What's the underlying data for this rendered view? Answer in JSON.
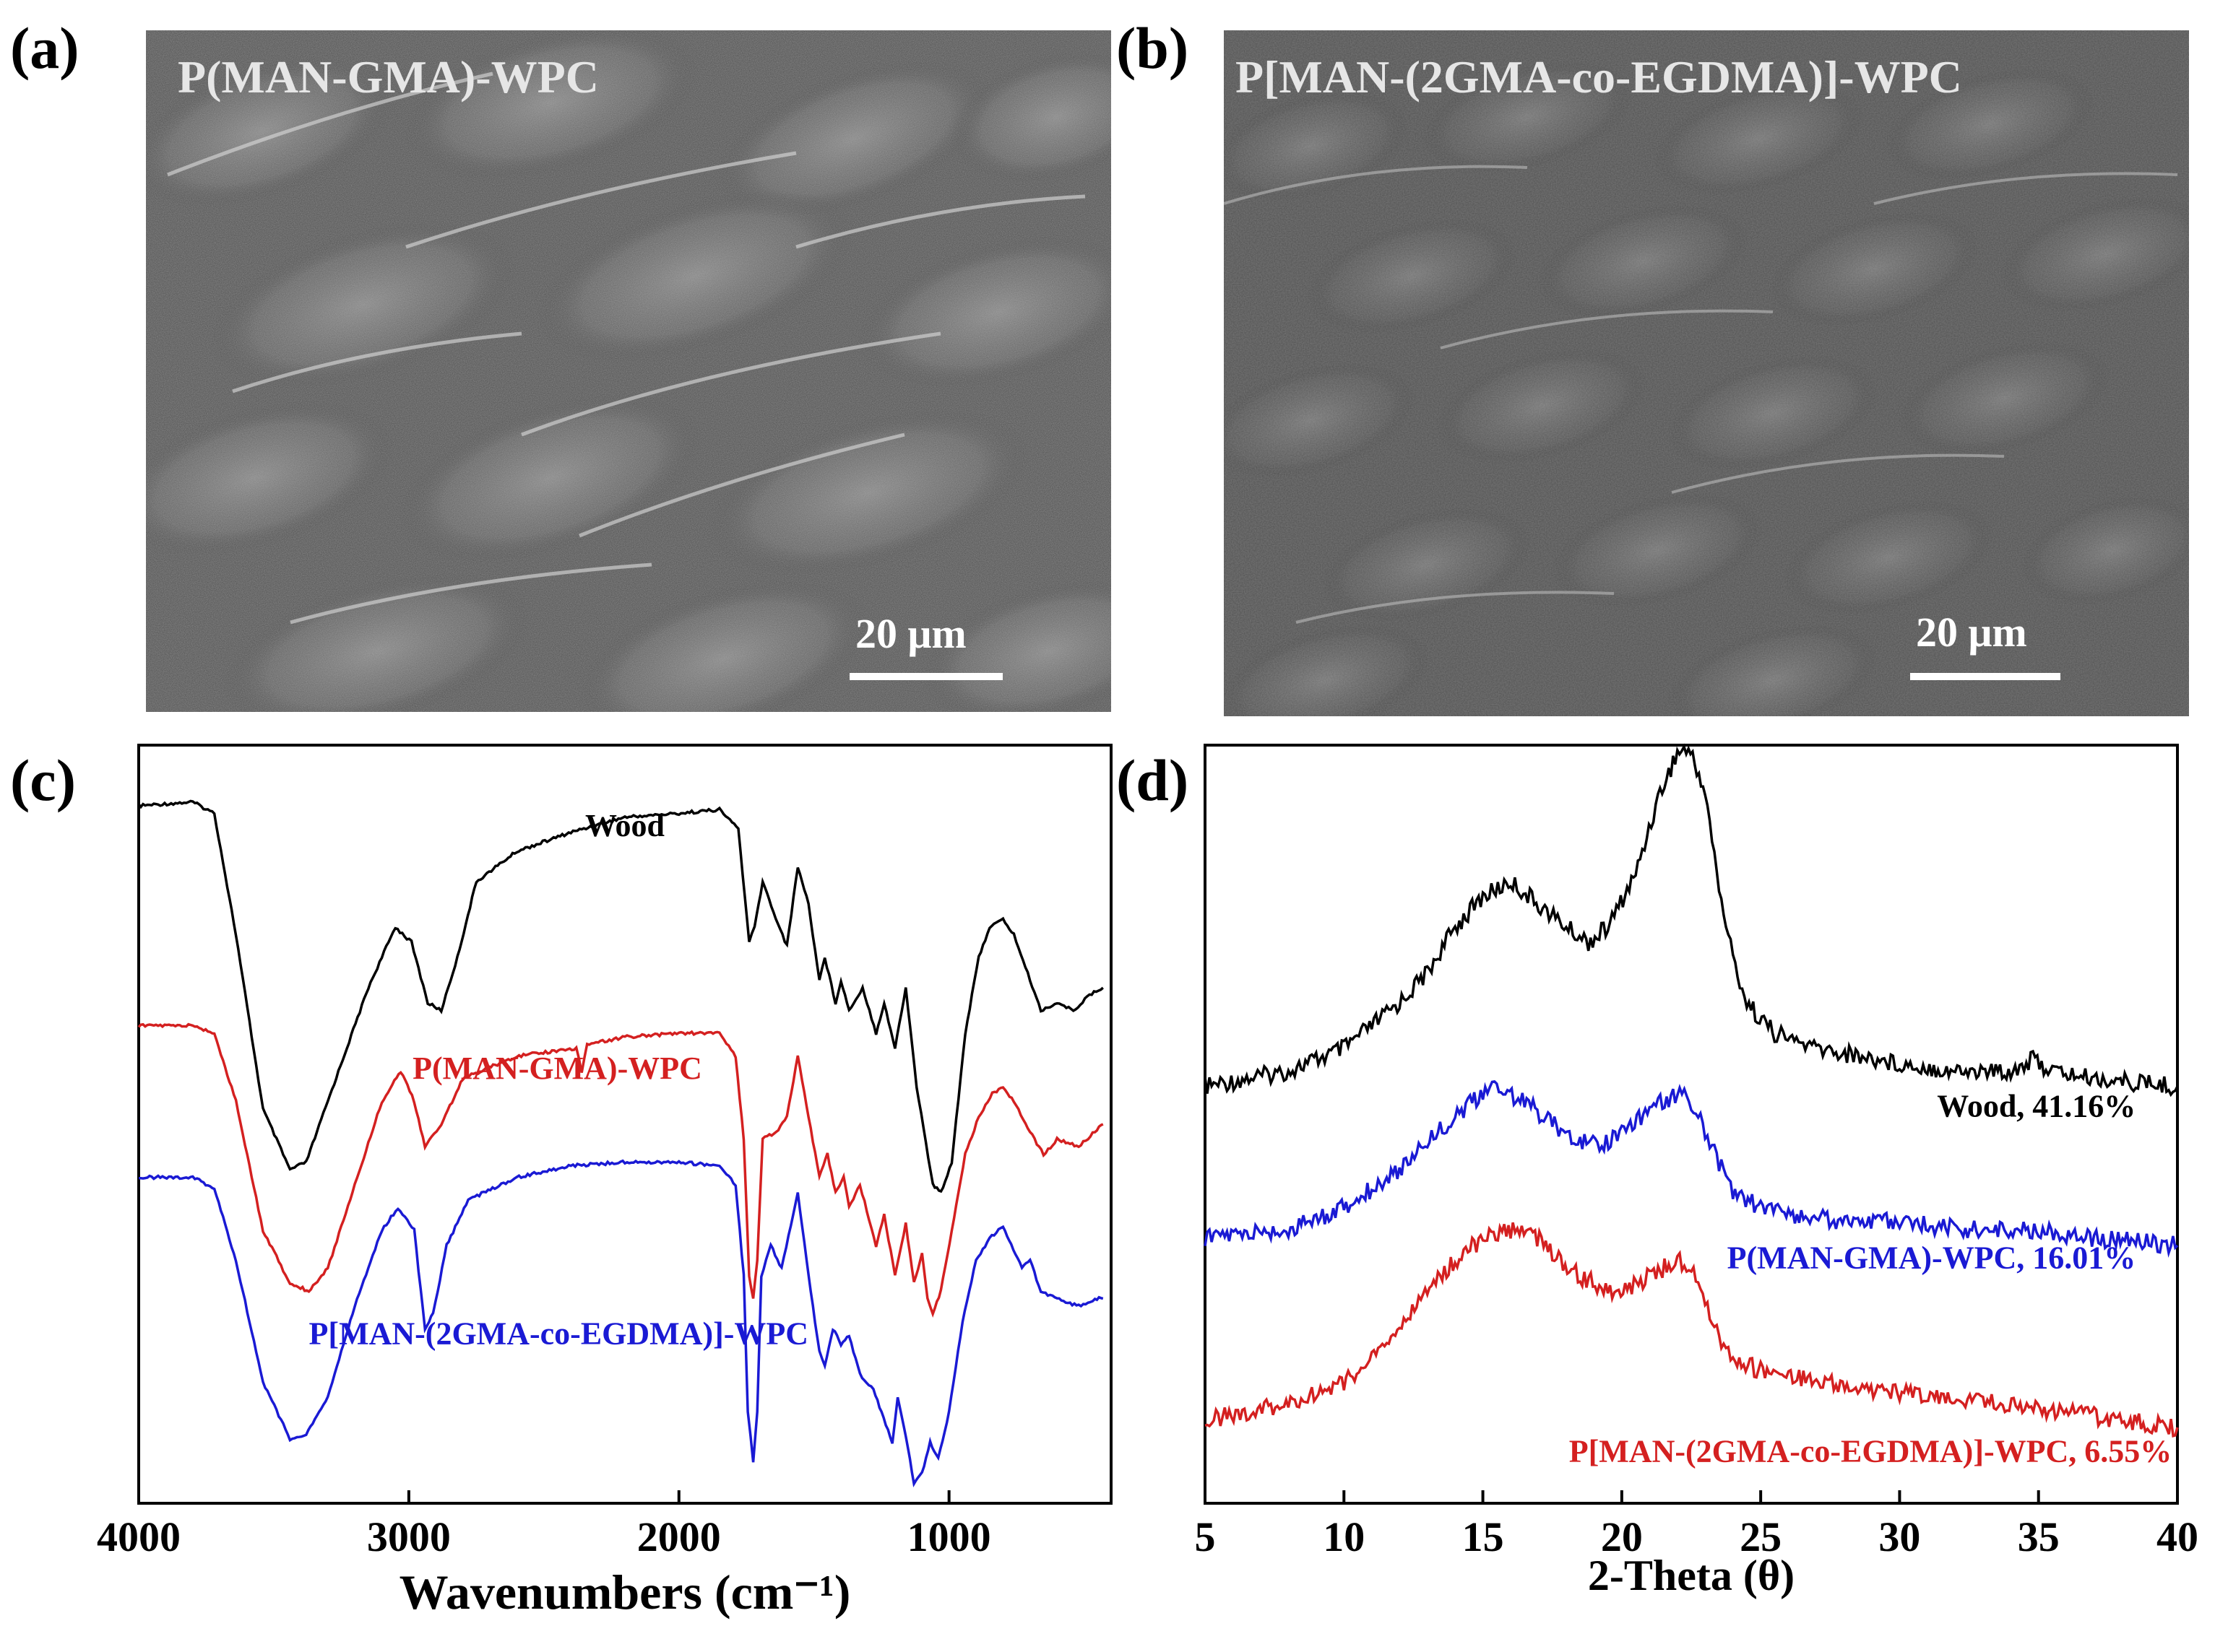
{
  "panels": {
    "a": {
      "label": "(a)",
      "title": "P(MAN-GMA)-WPC",
      "scale": "20 μm"
    },
    "b": {
      "label": "(b)",
      "title": "P[MAN-(2GMA-co-EGDMA)]-WPC",
      "scale": "20 μm"
    },
    "c": {
      "label": "(c)"
    },
    "d": {
      "label": "(d)"
    }
  },
  "colors": {
    "black": "#000000",
    "red": "#d42020",
    "blue": "#1a1ad4"
  },
  "chart_data": [
    {
      "type": "line",
      "id": "ftir",
      "xlabel": "Wavenumbers (cm⁻¹)",
      "ylabel": "",
      "xlim": [
        4000,
        400
      ],
      "ylim": [
        0,
        10
      ],
      "xticks": [
        4000,
        3000,
        2000,
        1000
      ],
      "xtick_labels": [
        "4000",
        "3000",
        "2000",
        "1000"
      ],
      "series": [
        {
          "name": "Wood",
          "color": "#000000",
          "label_pos": [
            2200,
            8.8
          ],
          "points": [
            [
              4000,
              9.2
            ],
            [
              3800,
              9.25
            ],
            [
              3720,
              9.1
            ],
            [
              3640,
              7.5
            ],
            [
              3540,
              5.2
            ],
            [
              3440,
              4.4
            ],
            [
              3380,
              4.5
            ],
            [
              3300,
              5.3
            ],
            [
              3150,
              6.8
            ],
            [
              3050,
              7.6
            ],
            [
              2990,
              7.4
            ],
            [
              2930,
              6.6
            ],
            [
              2880,
              6.5
            ],
            [
              2820,
              7.2
            ],
            [
              2750,
              8.2
            ],
            [
              2600,
              8.6
            ],
            [
              2400,
              8.85
            ],
            [
              2200,
              9.05
            ],
            [
              2000,
              9.1
            ],
            [
              1850,
              9.15
            ],
            [
              1780,
              8.9
            ],
            [
              1740,
              7.4
            ],
            [
              1720,
              7.6
            ],
            [
              1690,
              8.2
            ],
            [
              1650,
              7.8
            ],
            [
              1600,
              7.35
            ],
            [
              1560,
              8.4
            ],
            [
              1520,
              7.9
            ],
            [
              1480,
              6.9
            ],
            [
              1460,
              7.2
            ],
            [
              1420,
              6.6
            ],
            [
              1400,
              6.9
            ],
            [
              1370,
              6.5
            ],
            [
              1320,
              6.8
            ],
            [
              1270,
              6.2
            ],
            [
              1240,
              6.6
            ],
            [
              1200,
              6.0
            ],
            [
              1160,
              6.8
            ],
            [
              1120,
              5.5
            ],
            [
              1060,
              4.2
            ],
            [
              1030,
              4.1
            ],
            [
              990,
              4.5
            ],
            [
              940,
              6.2
            ],
            [
              890,
              7.2
            ],
            [
              850,
              7.6
            ],
            [
              800,
              7.7
            ],
            [
              760,
              7.5
            ],
            [
              700,
              6.9
            ],
            [
              660,
              6.5
            ],
            [
              600,
              6.6
            ],
            [
              540,
              6.5
            ],
            [
              480,
              6.7
            ],
            [
              430,
              6.8
            ]
          ]
        },
        {
          "name": "P(MAN-GMA)-WPC",
          "color": "#d42020",
          "label_pos": [
            2450,
            5.6
          ],
          "points": [
            [
              4000,
              6.3
            ],
            [
              3800,
              6.3
            ],
            [
              3720,
              6.2
            ],
            [
              3640,
              5.3
            ],
            [
              3540,
              3.6
            ],
            [
              3440,
              2.9
            ],
            [
              3370,
              2.8
            ],
            [
              3300,
              3.1
            ],
            [
              3200,
              4.2
            ],
            [
              3100,
              5.3
            ],
            [
              3030,
              5.7
            ],
            [
              2980,
              5.3
            ],
            [
              2940,
              4.7
            ],
            [
              2880,
              5.0
            ],
            [
              2800,
              5.6
            ],
            [
              2600,
              5.9
            ],
            [
              2380,
              6.0
            ],
            [
              2360,
              5.7
            ],
            [
              2340,
              6.05
            ],
            [
              2200,
              6.15
            ],
            [
              2000,
              6.2
            ],
            [
              1850,
              6.2
            ],
            [
              1790,
              5.9
            ],
            [
              1760,
              4.8
            ],
            [
              1740,
              3.0
            ],
            [
              1725,
              2.7
            ],
            [
              1710,
              3.2
            ],
            [
              1690,
              4.8
            ],
            [
              1640,
              4.9
            ],
            [
              1600,
              5.1
            ],
            [
              1560,
              5.9
            ],
            [
              1520,
              5.1
            ],
            [
              1480,
              4.3
            ],
            [
              1450,
              4.6
            ],
            [
              1420,
              4.1
            ],
            [
              1390,
              4.3
            ],
            [
              1370,
              3.9
            ],
            [
              1330,
              4.2
            ],
            [
              1270,
              3.4
            ],
            [
              1240,
              3.8
            ],
            [
              1200,
              3.0
            ],
            [
              1160,
              3.7
            ],
            [
              1130,
              2.9
            ],
            [
              1100,
              3.3
            ],
            [
              1080,
              2.7
            ],
            [
              1060,
              2.5
            ],
            [
              1030,
              2.8
            ],
            [
              990,
              3.6
            ],
            [
              940,
              4.6
            ],
            [
              890,
              5.1
            ],
            [
              840,
              5.4
            ],
            [
              800,
              5.5
            ],
            [
              760,
              5.3
            ],
            [
              700,
              4.9
            ],
            [
              650,
              4.6
            ],
            [
              600,
              4.8
            ],
            [
              520,
              4.7
            ],
            [
              460,
              4.9
            ],
            [
              430,
              5.0
            ]
          ]
        },
        {
          "name": "P[MAN-(2GMA-co-EGDMA)]-WPC",
          "color": "#1a1ad4",
          "label_pos": [
            3370,
            2.1
          ],
          "points": [
            [
              4000,
              4.3
            ],
            [
              3800,
              4.3
            ],
            [
              3720,
              4.15
            ],
            [
              3640,
              3.2
            ],
            [
              3540,
              1.6
            ],
            [
              3440,
              0.85
            ],
            [
              3380,
              0.9
            ],
            [
              3300,
              1.4
            ],
            [
              3200,
              2.6
            ],
            [
              3100,
              3.6
            ],
            [
              3040,
              3.9
            ],
            [
              2980,
              3.6
            ],
            [
              2940,
              2.3
            ],
            [
              2910,
              2.5
            ],
            [
              2860,
              3.4
            ],
            [
              2780,
              4.0
            ],
            [
              2600,
              4.3
            ],
            [
              2400,
              4.45
            ],
            [
              2200,
              4.5
            ],
            [
              2000,
              4.5
            ],
            [
              1850,
              4.45
            ],
            [
              1790,
              4.2
            ],
            [
              1760,
              3.0
            ],
            [
              1745,
              1.2
            ],
            [
              1725,
              0.55
            ],
            [
              1710,
              1.2
            ],
            [
              1695,
              3.0
            ],
            [
              1660,
              3.4
            ],
            [
              1620,
              3.1
            ],
            [
              1560,
              4.1
            ],
            [
              1520,
              3.0
            ],
            [
              1480,
              2.0
            ],
            [
              1460,
              1.8
            ],
            [
              1430,
              2.3
            ],
            [
              1400,
              2.1
            ],
            [
              1370,
              2.2
            ],
            [
              1330,
              1.7
            ],
            [
              1280,
              1.5
            ],
            [
              1250,
              1.2
            ],
            [
              1210,
              0.8
            ],
            [
              1190,
              1.4
            ],
            [
              1160,
              0.9
            ],
            [
              1130,
              0.25
            ],
            [
              1100,
              0.4
            ],
            [
              1070,
              0.8
            ],
            [
              1040,
              0.6
            ],
            [
              1000,
              1.2
            ],
            [
              950,
              2.4
            ],
            [
              900,
              3.2
            ],
            [
              850,
              3.5
            ],
            [
              800,
              3.65
            ],
            [
              770,
              3.4
            ],
            [
              730,
              3.1
            ],
            [
              700,
              3.2
            ],
            [
              660,
              2.8
            ],
            [
              600,
              2.7
            ],
            [
              520,
              2.6
            ],
            [
              460,
              2.7
            ],
            [
              430,
              2.7
            ]
          ]
        }
      ]
    },
    {
      "type": "line",
      "id": "xrd",
      "xlabel": "2-Theta (θ)",
      "ylabel": "",
      "xlim": [
        5,
        40
      ],
      "ylim": [
        0,
        10
      ],
      "xticks": [
        5,
        10,
        15,
        20,
        25,
        30,
        35,
        40
      ],
      "xtick_labels": [
        "5",
        "10",
        "15",
        "20",
        "25",
        "30",
        "35",
        "40"
      ],
      "series": [
        {
          "name": "Wood, 41.16%",
          "color": "#000000",
          "label_pos": [
            38.5,
            5.1
          ],
          "points": [
            [
              5,
              5.5
            ],
            [
              8,
              5.7
            ],
            [
              10,
              6.0
            ],
            [
              12,
              6.6
            ],
            [
              13,
              7.0
            ],
            [
              14,
              7.6
            ],
            [
              15,
              8.0
            ],
            [
              16,
              8.2
            ],
            [
              17,
              7.9
            ],
            [
              18,
              7.6
            ],
            [
              18.8,
              7.4
            ],
            [
              19.5,
              7.6
            ],
            [
              20.5,
              8.3
            ],
            [
              21.3,
              9.3
            ],
            [
              22,
              9.9
            ],
            [
              22.4,
              9.95
            ],
            [
              23,
              9.4
            ],
            [
              23.5,
              8.1
            ],
            [
              24,
              7.2
            ],
            [
              24.5,
              6.6
            ],
            [
              25.5,
              6.2
            ],
            [
              27,
              6.0
            ],
            [
              30,
              5.8
            ],
            [
              32,
              5.7
            ],
            [
              34,
              5.7
            ],
            [
              34.8,
              5.85
            ],
            [
              35.5,
              5.7
            ],
            [
              37,
              5.6
            ],
            [
              40,
              5.5
            ]
          ]
        },
        {
          "name": "P(MAN-GMA)-WPC, 16.01%",
          "color": "#1a1ad4",
          "label_pos": [
            38.5,
            3.1
          ],
          "points": [
            [
              5,
              3.5
            ],
            [
              8,
              3.6
            ],
            [
              10,
              3.9
            ],
            [
              12,
              4.4
            ],
            [
              13,
              4.8
            ],
            [
              14,
              5.1
            ],
            [
              15,
              5.4
            ],
            [
              15.5,
              5.5
            ],
            [
              16.5,
              5.3
            ],
            [
              17.5,
              5.0
            ],
            [
              18.5,
              4.8
            ],
            [
              19.2,
              4.7
            ],
            [
              20,
              4.9
            ],
            [
              21,
              5.2
            ],
            [
              22,
              5.4
            ],
            [
              22.5,
              5.3
            ],
            [
              23,
              4.9
            ],
            [
              23.5,
              4.5
            ],
            [
              24,
              4.1
            ],
            [
              25,
              3.9
            ],
            [
              27,
              3.75
            ],
            [
              30,
              3.7
            ],
            [
              33,
              3.6
            ],
            [
              35,
              3.6
            ],
            [
              37,
              3.5
            ],
            [
              40,
              3.4
            ]
          ]
        },
        {
          "name": "P[MAN-(2GMA-co-EGDMA)]-WPC, 6.55%",
          "color": "#d42020",
          "label_pos": [
            39.8,
            0.55
          ],
          "points": [
            [
              5,
              1.1
            ],
            [
              8,
              1.3
            ],
            [
              10,
              1.6
            ],
            [
              11,
              1.9
            ],
            [
              12,
              2.3
            ],
            [
              13,
              2.8
            ],
            [
              14,
              3.2
            ],
            [
              15,
              3.5
            ],
            [
              16,
              3.6
            ],
            [
              16.8,
              3.55
            ],
            [
              17.5,
              3.3
            ],
            [
              18.5,
              3.0
            ],
            [
              19.5,
              2.8
            ],
            [
              20.2,
              2.8
            ],
            [
              21,
              3.0
            ],
            [
              22,
              3.2
            ],
            [
              22.5,
              3.1
            ],
            [
              23,
              2.7
            ],
            [
              23.5,
              2.2
            ],
            [
              24,
              1.9
            ],
            [
              25,
              1.75
            ],
            [
              27,
              1.6
            ],
            [
              30,
              1.45
            ],
            [
              33,
              1.35
            ],
            [
              36,
              1.2
            ],
            [
              38,
              1.1
            ],
            [
              40,
              1.0
            ]
          ]
        }
      ]
    }
  ]
}
